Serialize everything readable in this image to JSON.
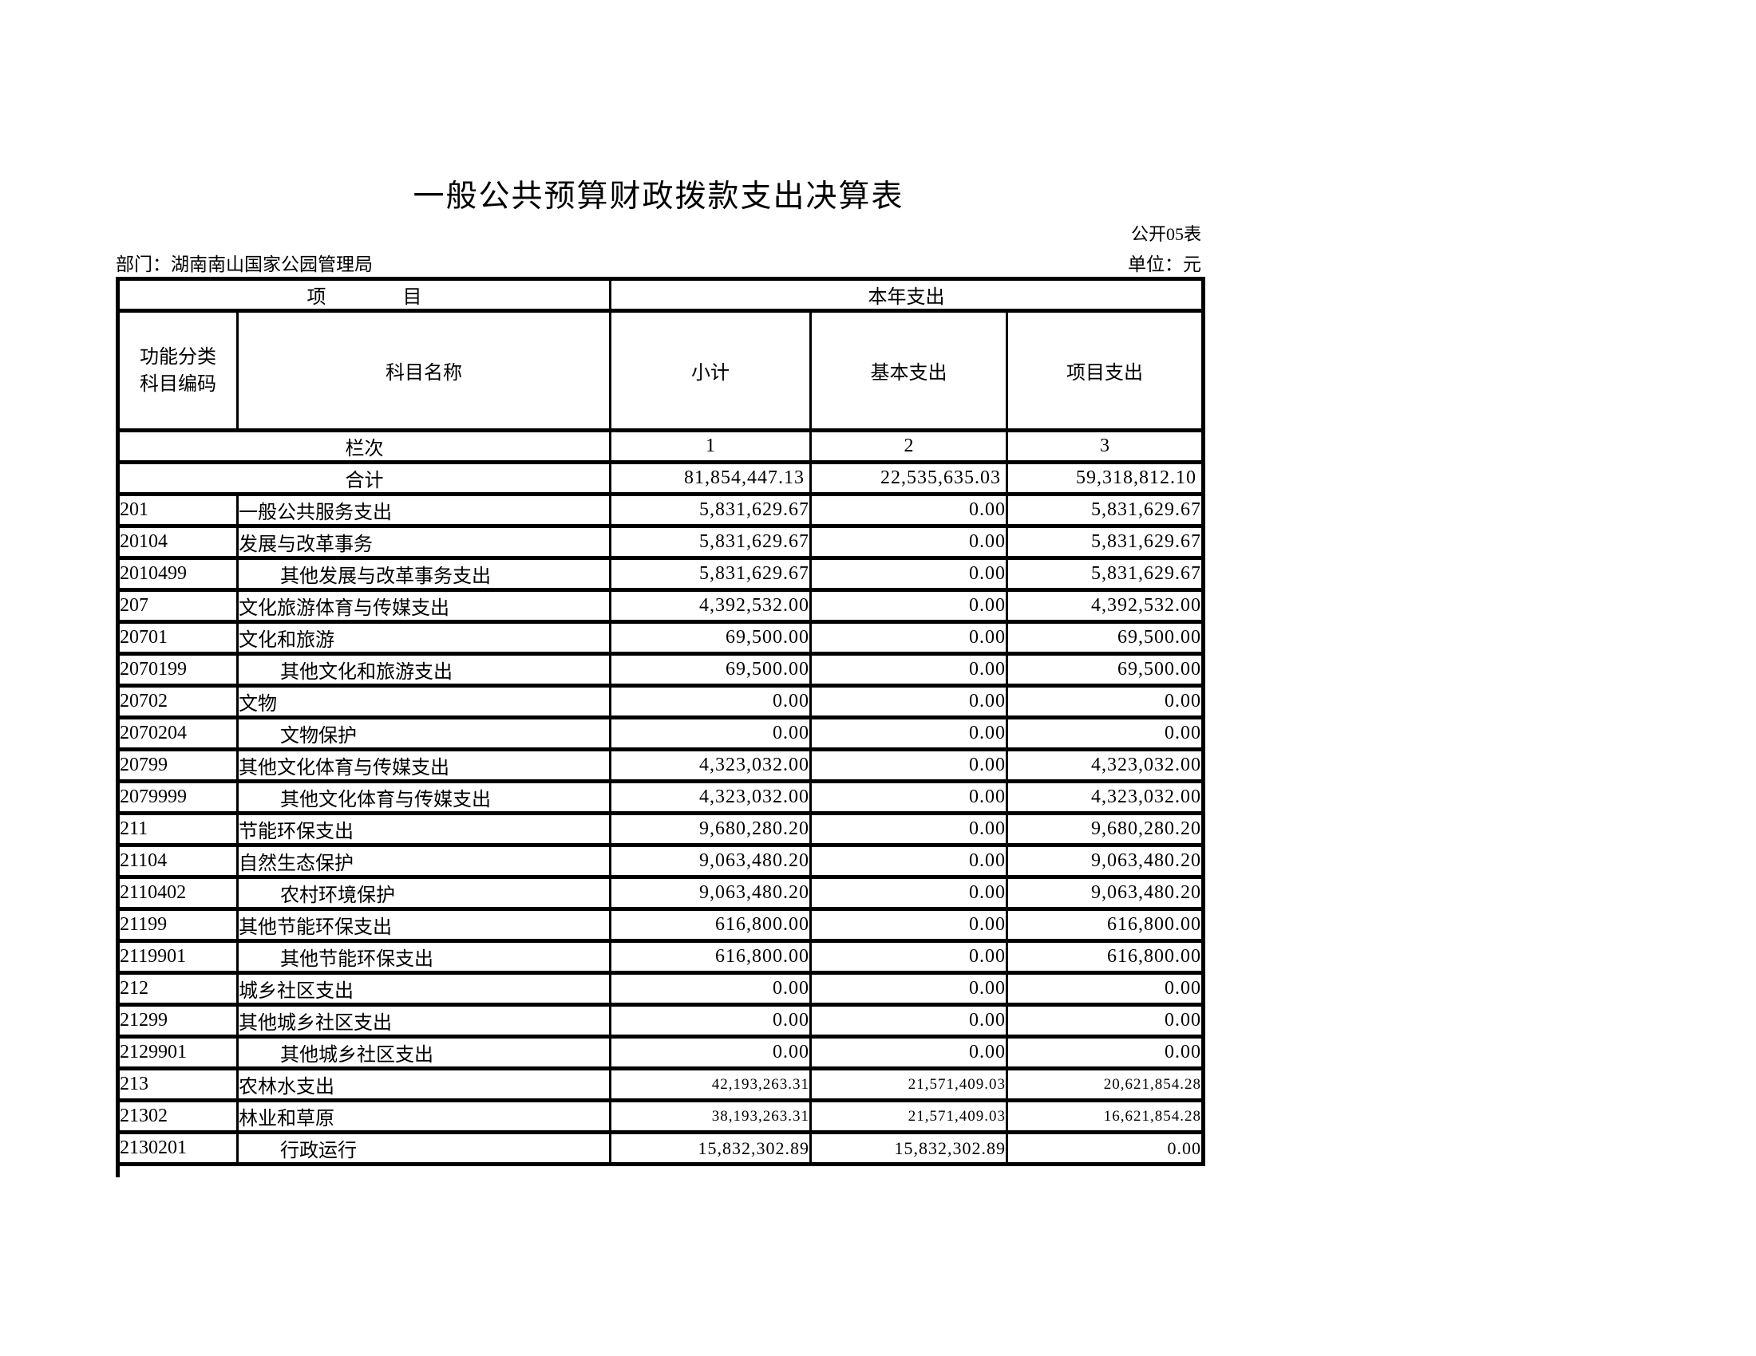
{
  "page": {
    "title": "一般公共预算财政拨款支出决算表",
    "table_code": "公开05表",
    "department_label": "部门：湖南南山国家公园管理局",
    "unit_label": "单位：元",
    "colors": {
      "text": "#000000",
      "background": "#ffffff",
      "grid": "#000000"
    }
  },
  "table": {
    "header": {
      "item_group": "项　　　　目",
      "year_group": "本年支出",
      "code_line1": "功能分类",
      "code_line2": "科目编码",
      "col_name": "科目名称",
      "col_subtotal": "小计",
      "col_basic": "基本支出",
      "col_project": "项目支出",
      "rank_label": "栏次",
      "rank_cols": [
        "1",
        "2",
        "3"
      ],
      "total_label": "合计",
      "total_values": [
        "81,854,447.13",
        "22,535,635.03",
        "59,318,812.10"
      ]
    },
    "rows": [
      {
        "code": "201",
        "name": "一般公共服务支出",
        "indent": 0,
        "subtotal": "5,831,629.67",
        "basic": "0.00",
        "project": "5,831,629.67",
        "size": ""
      },
      {
        "code": "20104",
        "name": "发展与改革事务",
        "indent": 0,
        "subtotal": "5,831,629.67",
        "basic": "0.00",
        "project": "5,831,629.67",
        "size": ""
      },
      {
        "code": "2010499",
        "name": "其他发展与改革事务支出",
        "indent": 1,
        "subtotal": "5,831,629.67",
        "basic": "0.00",
        "project": "5,831,629.67",
        "size": ""
      },
      {
        "code": "207",
        "name": "文化旅游体育与传媒支出",
        "indent": 0,
        "subtotal": "4,392,532.00",
        "basic": "0.00",
        "project": "4,392,532.00",
        "size": ""
      },
      {
        "code": "20701",
        "name": "文化和旅游",
        "indent": 0,
        "subtotal": "69,500.00",
        "basic": "0.00",
        "project": "69,500.00",
        "size": ""
      },
      {
        "code": "2070199",
        "name": "其他文化和旅游支出",
        "indent": 1,
        "subtotal": "69,500.00",
        "basic": "0.00",
        "project": "69,500.00",
        "size": ""
      },
      {
        "code": "20702",
        "name": "文物",
        "indent": 0,
        "subtotal": "0.00",
        "basic": "0.00",
        "project": "0.00",
        "size": ""
      },
      {
        "code": "2070204",
        "name": "文物保护",
        "indent": 1,
        "subtotal": "0.00",
        "basic": "0.00",
        "project": "0.00",
        "size": ""
      },
      {
        "code": "20799",
        "name": "其他文化体育与传媒支出",
        "indent": 0,
        "subtotal": "4,323,032.00",
        "basic": "0.00",
        "project": "4,323,032.00",
        "size": ""
      },
      {
        "code": "2079999",
        "name": "其他文化体育与传媒支出",
        "indent": 1,
        "subtotal": "4,323,032.00",
        "basic": "0.00",
        "project": "4,323,032.00",
        "size": ""
      },
      {
        "code": "211",
        "name": "节能环保支出",
        "indent": 0,
        "subtotal": "9,680,280.20",
        "basic": "0.00",
        "project": "9,680,280.20",
        "size": ""
      },
      {
        "code": "21104",
        "name": "自然生态保护",
        "indent": 0,
        "subtotal": "9,063,480.20",
        "basic": "0.00",
        "project": "9,063,480.20",
        "size": ""
      },
      {
        "code": "2110402",
        "name": "农村环境保护",
        "indent": 1,
        "subtotal": "9,063,480.20",
        "basic": "0.00",
        "project": "9,063,480.20",
        "size": ""
      },
      {
        "code": "21199",
        "name": "其他节能环保支出",
        "indent": 0,
        "subtotal": "616,800.00",
        "basic": "0.00",
        "project": "616,800.00",
        "size": ""
      },
      {
        "code": "2119901",
        "name": "其他节能环保支出",
        "indent": 1,
        "subtotal": "616,800.00",
        "basic": "0.00",
        "project": "616,800.00",
        "size": ""
      },
      {
        "code": "212",
        "name": "城乡社区支出",
        "indent": 0,
        "subtotal": "0.00",
        "basic": "0.00",
        "project": "0.00",
        "size": ""
      },
      {
        "code": "21299",
        "name": "其他城乡社区支出",
        "indent": 0,
        "subtotal": "0.00",
        "basic": "0.00",
        "project": "0.00",
        "size": ""
      },
      {
        "code": "2129901",
        "name": "其他城乡社区支出",
        "indent": 1,
        "subtotal": "0.00",
        "basic": "0.00",
        "project": "0.00",
        "size": ""
      },
      {
        "code": "213",
        "name": "农林水支出",
        "indent": 0,
        "subtotal": "42,193,263.31",
        "basic": "21,571,409.03",
        "project": "20,621,854.28",
        "size": "sm"
      },
      {
        "code": "21302",
        "name": "林业和草原",
        "indent": 0,
        "subtotal": "38,193,263.31",
        "basic": "21,571,409.03",
        "project": "16,621,854.28",
        "size": "sm"
      },
      {
        "code": "2130201",
        "name": "行政运行",
        "indent": 1,
        "subtotal": "15,832,302.89",
        "basic": "15,832,302.89",
        "project": "0.00",
        "size": "md"
      }
    ]
  }
}
